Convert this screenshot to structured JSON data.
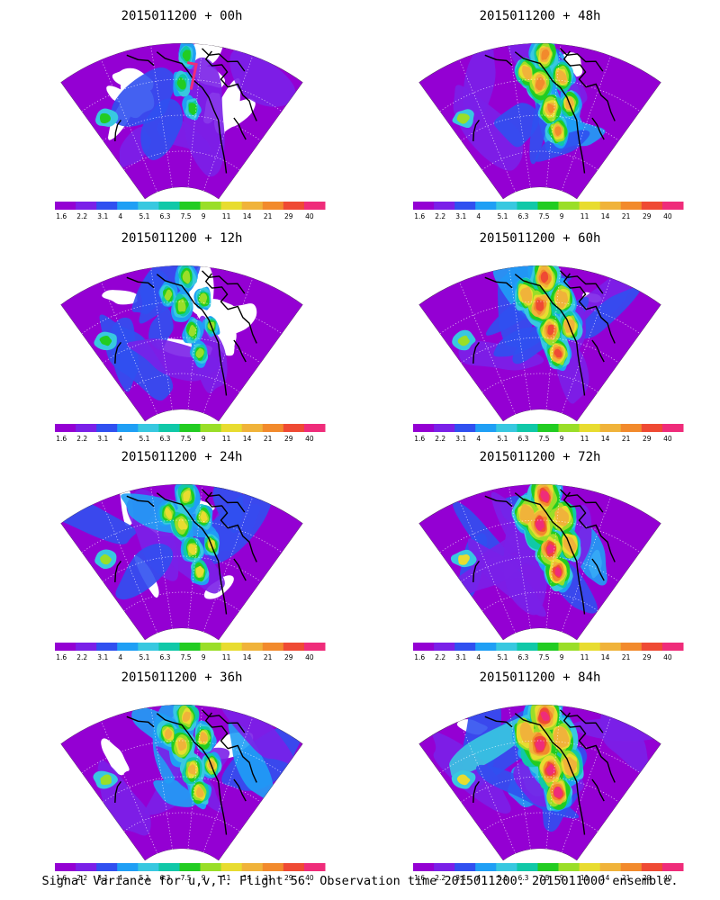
{
  "figure_caption": "Signal Variance for u,v,T. Flight 56. Observation time 2015011200. 2015011000 ensemble.",
  "colorbar": {
    "labels": [
      "1.6",
      "2.2",
      "3.1",
      "4",
      "5.1",
      "6.3",
      "7.5",
      "9",
      "11",
      "14",
      "21",
      "29",
      "40"
    ],
    "colors": [
      "#9400d3",
      "#7a20e8",
      "#3050f0",
      "#1f9ff5",
      "#38c8e0",
      "#10c8a8",
      "#22cc22",
      "#9ade28",
      "#e8dc30",
      "#f0b33a",
      "#f28a2c",
      "#ef4a34",
      "#ef2c7a"
    ]
  },
  "panels": [
    {
      "title": "2015011200 + 00h",
      "lead_hours": 0
    },
    {
      "title": "2015011200 + 48h",
      "lead_hours": 48
    },
    {
      "title": "2015011200 + 12h",
      "lead_hours": 12
    },
    {
      "title": "2015011200 + 60h",
      "lead_hours": 60
    },
    {
      "title": "2015011200 + 24h",
      "lead_hours": 24
    },
    {
      "title": "2015011200 + 72h",
      "lead_hours": 72
    },
    {
      "title": "2015011200 + 36h",
      "lead_hours": 36
    },
    {
      "title": "2015011200 + 84h",
      "lead_hours": 84
    }
  ]
}
